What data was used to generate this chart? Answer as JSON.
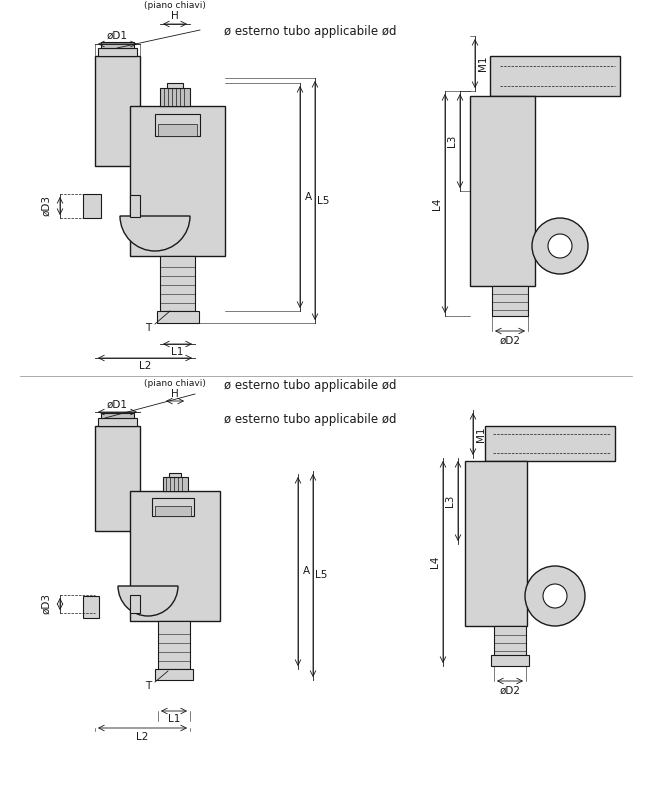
{
  "bg_color": "#ffffff",
  "line_color": "#1a1a1a",
  "fill_color": "#d4d4d4",
  "fill_color2": "#c0c0c0",
  "title_text_top": "ø esterno tubo applicabile ød",
  "title_text_bottom": "ø esterno tubo applicabile ød",
  "labels_top_left": {
    "oD1": "øD1",
    "H": "H",
    "piano_chiavi": "(piano chiavi)",
    "oD3": "øD3",
    "A": "A",
    "L5": "L5",
    "T": "T",
    "L1": "L1",
    "L2": "L2"
  },
  "labels_top_right": {
    "M1": "M1",
    "L3": "L3",
    "L4": "L4",
    "oD2": "øD2"
  },
  "labels_bot_left": {
    "oD1": "øD1",
    "H": "H",
    "piano_chiavi": "(piano chiavi)",
    "oD3": "øD3",
    "A": "A",
    "L5": "L5",
    "T": "T",
    "L1": "L1",
    "L2": "L2"
  },
  "labels_bot_right": {
    "M1": "M1",
    "L3": "L3",
    "L4": "L4",
    "oD2": "øD2"
  },
  "font_size_label": 7.5,
  "font_size_title": 8.5
}
